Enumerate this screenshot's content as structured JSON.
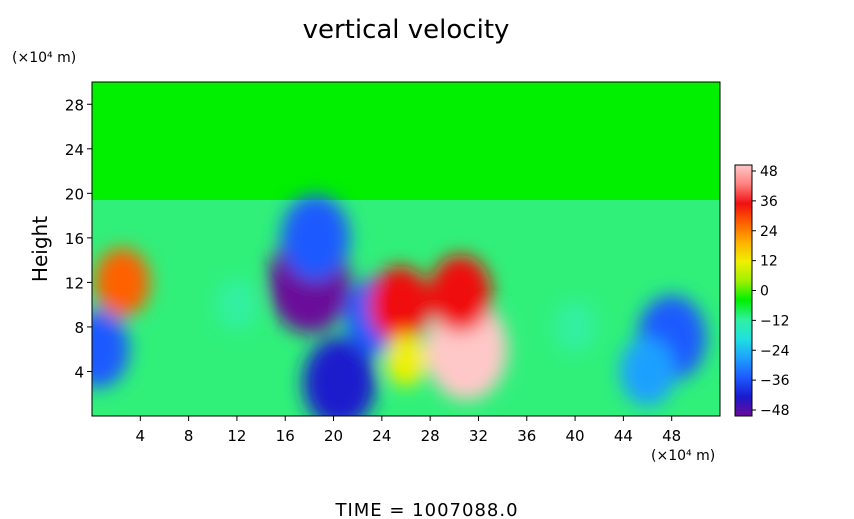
{
  "chart_data": {
    "type": "heatmap",
    "title": "vertical velocity",
    "xlabel": "",
    "ylabel": "Height",
    "x_unit": "(×10⁴ m)",
    "y_unit": "(×10⁴ m)",
    "xlim": [
      0,
      52
    ],
    "ylim": [
      0,
      30
    ],
    "x_ticks": [
      "4",
      "8",
      "12",
      "16",
      "20",
      "24",
      "28",
      "32",
      "36",
      "40",
      "44",
      "48"
    ],
    "y_ticks": [
      "4",
      "8",
      "12",
      "16",
      "20",
      "24",
      "28"
    ],
    "colorbar": {
      "range": [
        -48,
        48
      ],
      "ticks": [
        "48",
        "36",
        "24",
        "12",
        "0",
        "−12",
        "−24",
        "−36",
        "−48"
      ],
      "colormap": [
        "#6a0a9a",
        "#1a1acc",
        "#1e5aff",
        "#1ea0ff",
        "#20e0e0",
        "#30f0a0",
        "#00f000",
        "#a0f000",
        "#f0f000",
        "#ffb000",
        "#ff6000",
        "#f01010",
        "#ff8080",
        "#ffc8c8"
      ]
    },
    "grid": false,
    "features": [
      {
        "x": 18,
        "y": 12,
        "value": -48
      },
      {
        "x": 18.5,
        "y": 16,
        "value": -36
      },
      {
        "x": 20.5,
        "y": 3,
        "value": -40
      },
      {
        "x": 23.5,
        "y": 9,
        "value": -30
      },
      {
        "x": 31,
        "y": 6,
        "value": 48
      },
      {
        "x": 30.5,
        "y": 11,
        "value": 30
      },
      {
        "x": 25.5,
        "y": 10,
        "value": 30
      },
      {
        "x": 48,
        "y": 7,
        "value": -36
      },
      {
        "x": 46,
        "y": 4,
        "value": -24
      },
      {
        "x": 0.5,
        "y": 6,
        "value": -30
      },
      {
        "x": 2.5,
        "y": 12,
        "value": 24
      },
      {
        "x": 12,
        "y": 10,
        "value": -12
      },
      {
        "x": 40,
        "y": 8,
        "value": -12
      },
      {
        "x": 26,
        "y": 5,
        "value": 12
      }
    ]
  },
  "footer": {
    "time_text": "TIME  =  1007088.0"
  }
}
